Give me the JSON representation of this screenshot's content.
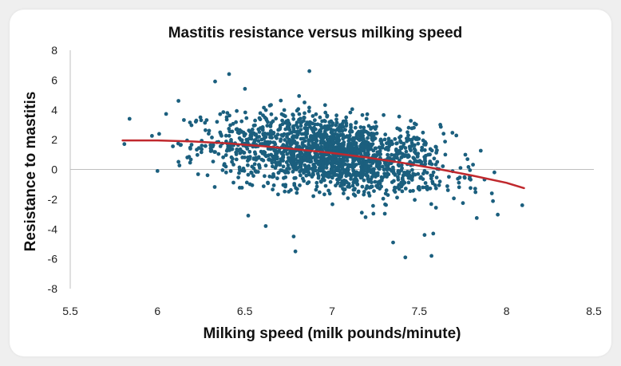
{
  "chart_data": {
    "type": "scatter",
    "title": "Mastitis resistance versus milking speed",
    "xlabel": "Milking speed (milk pounds/minute)",
    "ylabel": "Resistance to mastitis",
    "xlim": [
      5.5,
      8.5
    ],
    "ylim": [
      -8,
      8
    ],
    "x_ticks": [
      "5.5",
      "6",
      "6.5",
      "7",
      "7.5",
      "8",
      "8.5"
    ],
    "y_ticks": [
      "8",
      "6",
      "4",
      "2",
      "0",
      "-2",
      "-4",
      "-6",
      "-8"
    ],
    "grid": false,
    "colors": {
      "points": "#1b5f7e",
      "trend": "#c0282d",
      "axis": "#bfbfbf"
    },
    "scatter_cloud": {
      "n_points": 1800,
      "x_mean": 7.0,
      "x_sd": 0.33,
      "y_sd": 1.25
    },
    "series": [
      {
        "type": "scatter",
        "x": [
          5.81,
          5.84,
          6.0,
          6.12,
          6.33,
          6.41,
          6.62,
          6.78,
          6.79,
          6.87,
          7.42,
          7.53,
          7.57,
          7.58,
          8.09,
          7.93,
          7.62,
          7.35,
          6.52,
          6.25
        ],
        "y": [
          1.7,
          3.4,
          -0.1,
          4.6,
          5.9,
          6.4,
          -3.8,
          -4.5,
          -5.5,
          6.6,
          -5.9,
          -4.4,
          -5.8,
          -4.3,
          -2.4,
          -0.2,
          3.0,
          -4.9,
          -3.1,
          3.3
        ]
      },
      {
        "type": "line",
        "x": [
          5.8,
          6.0,
          6.2,
          6.4,
          6.6,
          6.8,
          7.0,
          7.2,
          7.4,
          7.6,
          7.8,
          8.0,
          8.1
        ],
        "y": [
          1.95,
          1.95,
          1.88,
          1.75,
          1.57,
          1.35,
          1.1,
          0.8,
          0.45,
          0.05,
          -0.4,
          -0.9,
          -1.25
        ]
      }
    ]
  }
}
